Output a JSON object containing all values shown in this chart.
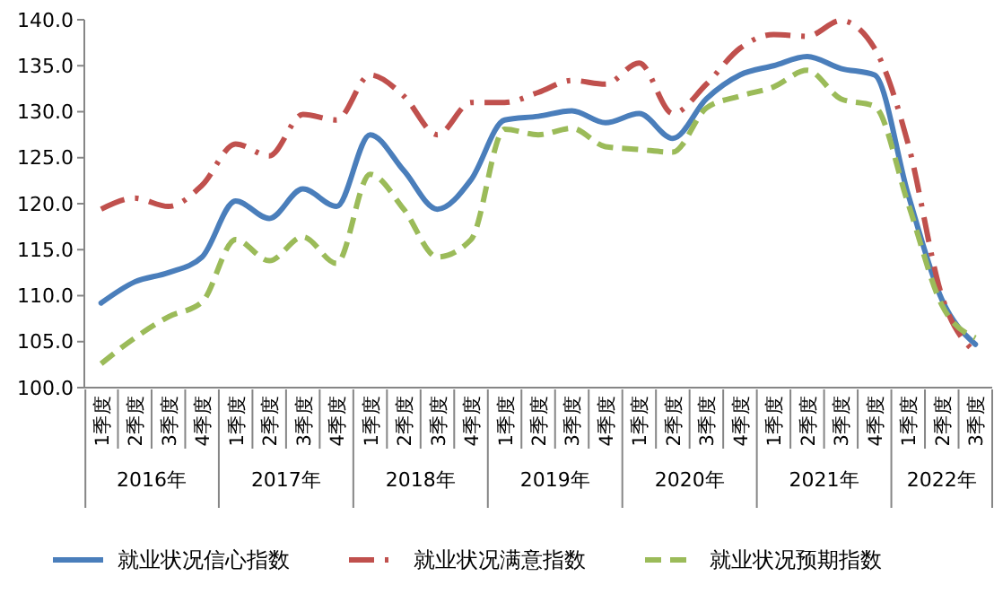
{
  "chart_data": {
    "type": "line",
    "categories": [
      "1季度",
      "2季度",
      "3季度",
      "4季度",
      "1季度",
      "2季度",
      "3季度",
      "4季度",
      "1季度",
      "2季度",
      "3季度",
      "4季度",
      "1季度",
      "2季度",
      "3季度",
      "4季度",
      "1季度",
      "2季度",
      "3季度",
      "4季度",
      "1季度",
      "2季度",
      "3季度",
      "4季度",
      "1季度",
      "2季度",
      "3季度"
    ],
    "annotations": [
      "2016年",
      "2017年",
      "2018年",
      "2019年",
      "2020年",
      "2021年",
      "2022年"
    ],
    "ylim": [
      100,
      140
    ],
    "yticks": [
      {
        "value": 100,
        "label": "100.0"
      },
      {
        "value": 105,
        "label": "105.0"
      },
      {
        "value": 110,
        "label": "110.0"
      },
      {
        "value": 115,
        "label": "115.0"
      },
      {
        "value": 120,
        "label": "120.0"
      },
      {
        "value": 125,
        "label": "125.0"
      },
      {
        "value": 130,
        "label": "130.0"
      },
      {
        "value": 135,
        "label": "135.0"
      },
      {
        "value": 140,
        "label": "140.0"
      }
    ],
    "grid": false,
    "legend": "bottom",
    "series": [
      {
        "name": "就业状况信心指数",
        "color": "#4a7ebb",
        "line_style": "solid",
        "values": [
          109.2,
          111.5,
          112.5,
          114.2,
          120.3,
          118.4,
          121.6,
          119.7,
          127.5,
          123.6,
          119.4,
          122.6,
          129.1,
          129.5,
          130.1,
          128.8,
          129.8,
          127.1,
          131.4,
          134.0,
          135.0,
          136.0,
          134.7,
          134.0,
          121.0,
          109.6,
          104.7
        ]
      },
      {
        "name": "就业状况满意指数",
        "color": "#c0504d",
        "line_style": "dashdot",
        "values": [
          119.4,
          120.6,
          119.7,
          122.0,
          126.5,
          125.2,
          129.7,
          129.1,
          134.0,
          131.7,
          127.5,
          131.0,
          131.0,
          132.1,
          133.4,
          133.0,
          135.3,
          129.8,
          133.0,
          136.9,
          138.4,
          138.2,
          139.9,
          136.9,
          126.5,
          110.0,
          103.8
        ]
      },
      {
        "name": "就业状况预期指数",
        "color": "#9bbb59",
        "line_style": "dashed",
        "values": [
          102.6,
          105.4,
          107.7,
          109.3,
          116.1,
          113.8,
          116.4,
          113.5,
          123.2,
          119.4,
          114.2,
          116.1,
          128.1,
          127.5,
          128.2,
          126.2,
          125.9,
          125.6,
          130.4,
          131.7,
          132.7,
          134.5,
          131.4,
          130.6,
          120.0,
          109.0,
          105.4
        ]
      }
    ]
  }
}
